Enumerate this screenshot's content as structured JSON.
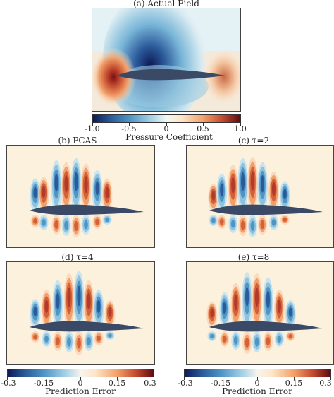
{
  "panels": {
    "actual": {
      "title": "(a) Actual Field"
    },
    "pcas": {
      "title": "(b) PCAS"
    },
    "tau2": {
      "title": "(c) τ=2"
    },
    "tau4": {
      "title": "(d) τ=4"
    },
    "tau8": {
      "title": "(e) τ=8"
    }
  },
  "colorbars": {
    "pressure": {
      "label": "Pressure Coefficient",
      "ticks": [
        "-1.0",
        "-0.5",
        "0",
        "0.5",
        "1.0"
      ],
      "range": [
        -1.0,
        1.0
      ]
    },
    "error_left": {
      "label": "Prediction Error",
      "ticks": [
        "-0.3",
        "-0.15",
        "0",
        "0.15",
        "0.3"
      ],
      "range": [
        -0.3,
        0.3
      ]
    },
    "error_right": {
      "label": "Prediction Error",
      "ticks": [
        "-0.3",
        "-0.15",
        "0",
        "0.15",
        "0.3"
      ],
      "range": [
        -0.3,
        0.3
      ]
    }
  },
  "colors": {
    "background_neutral": "#fcf1dc",
    "negative": "#2b5a9a",
    "positive": "#b23a2a",
    "airfoil": "#3a4a66",
    "colormap": [
      "#0e1a57",
      "#2b5a9a",
      "#4f95c4",
      "#a8d3e6",
      "#ffffff",
      "#fde6c8",
      "#f2a06a",
      "#c24a2d",
      "#5e0b12"
    ]
  }
}
